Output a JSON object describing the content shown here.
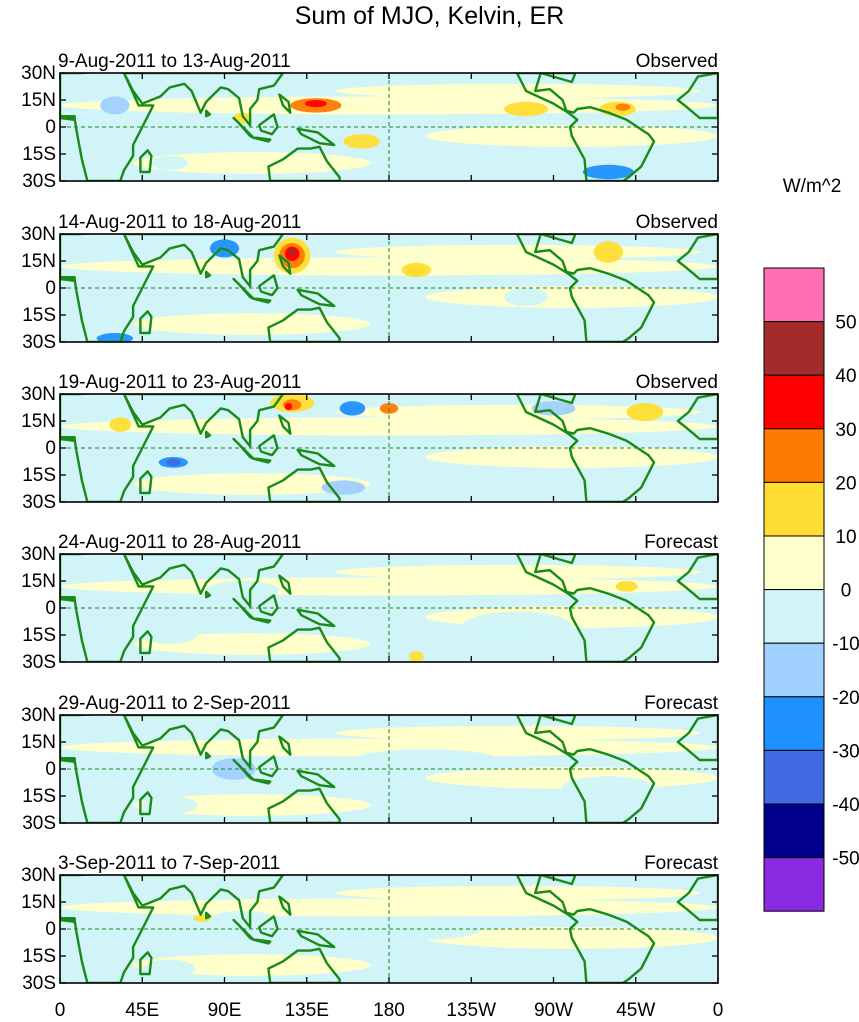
{
  "figure": {
    "title": "Sum of MJO, Kelvin, ER"
  },
  "panels": [
    {
      "date_range": "9-Aug-2011 to 13-Aug-2011",
      "type": "Observed"
    },
    {
      "date_range": "14-Aug-2011 to 18-Aug-2011",
      "type": "Observed"
    },
    {
      "date_range": "19-Aug-2011 to 23-Aug-2011",
      "type": "Observed"
    },
    {
      "date_range": "24-Aug-2011 to 28-Aug-2011",
      "type": "Forecast"
    },
    {
      "date_range": "29-Aug-2011 to 2-Sep-2011",
      "type": "Forecast"
    },
    {
      "date_range": "3-Sep-2011 to 7-Sep-2011",
      "type": "Forecast"
    }
  ],
  "axes": {
    "lat_ticks": [
      "30N",
      "15N",
      "0",
      "15S",
      "30S"
    ],
    "lat_values": [
      30,
      15,
      0,
      -15,
      -30
    ],
    "lon_ticks": [
      "0",
      "45E",
      "90E",
      "135E",
      "180",
      "135W",
      "90W",
      "45W",
      "0"
    ],
    "lon_values": [
      0,
      45,
      90,
      135,
      180,
      225,
      270,
      315,
      360
    ],
    "lat_range": [
      -30,
      30
    ],
    "lon_range": [
      0,
      360
    ]
  },
  "colorbar": {
    "units": "W/m^2",
    "levels": [
      "50",
      "40",
      "30",
      "20",
      "10",
      "0",
      "-10",
      "-20",
      "-30",
      "-40",
      "-50"
    ],
    "colors": [
      "#ff6eb4",
      "#a52a2a",
      "#ff0000",
      "#ff7a00",
      "#ffdd33",
      "#ffffcc",
      "#d0f4f8",
      "#a0d0ff",
      "#1e90ff",
      "#4169e1",
      "#00008b",
      "#8a2be2"
    ]
  },
  "map_style": {
    "coast_color": "#1a8a1a",
    "equator_color": "#1a8a1a"
  }
}
